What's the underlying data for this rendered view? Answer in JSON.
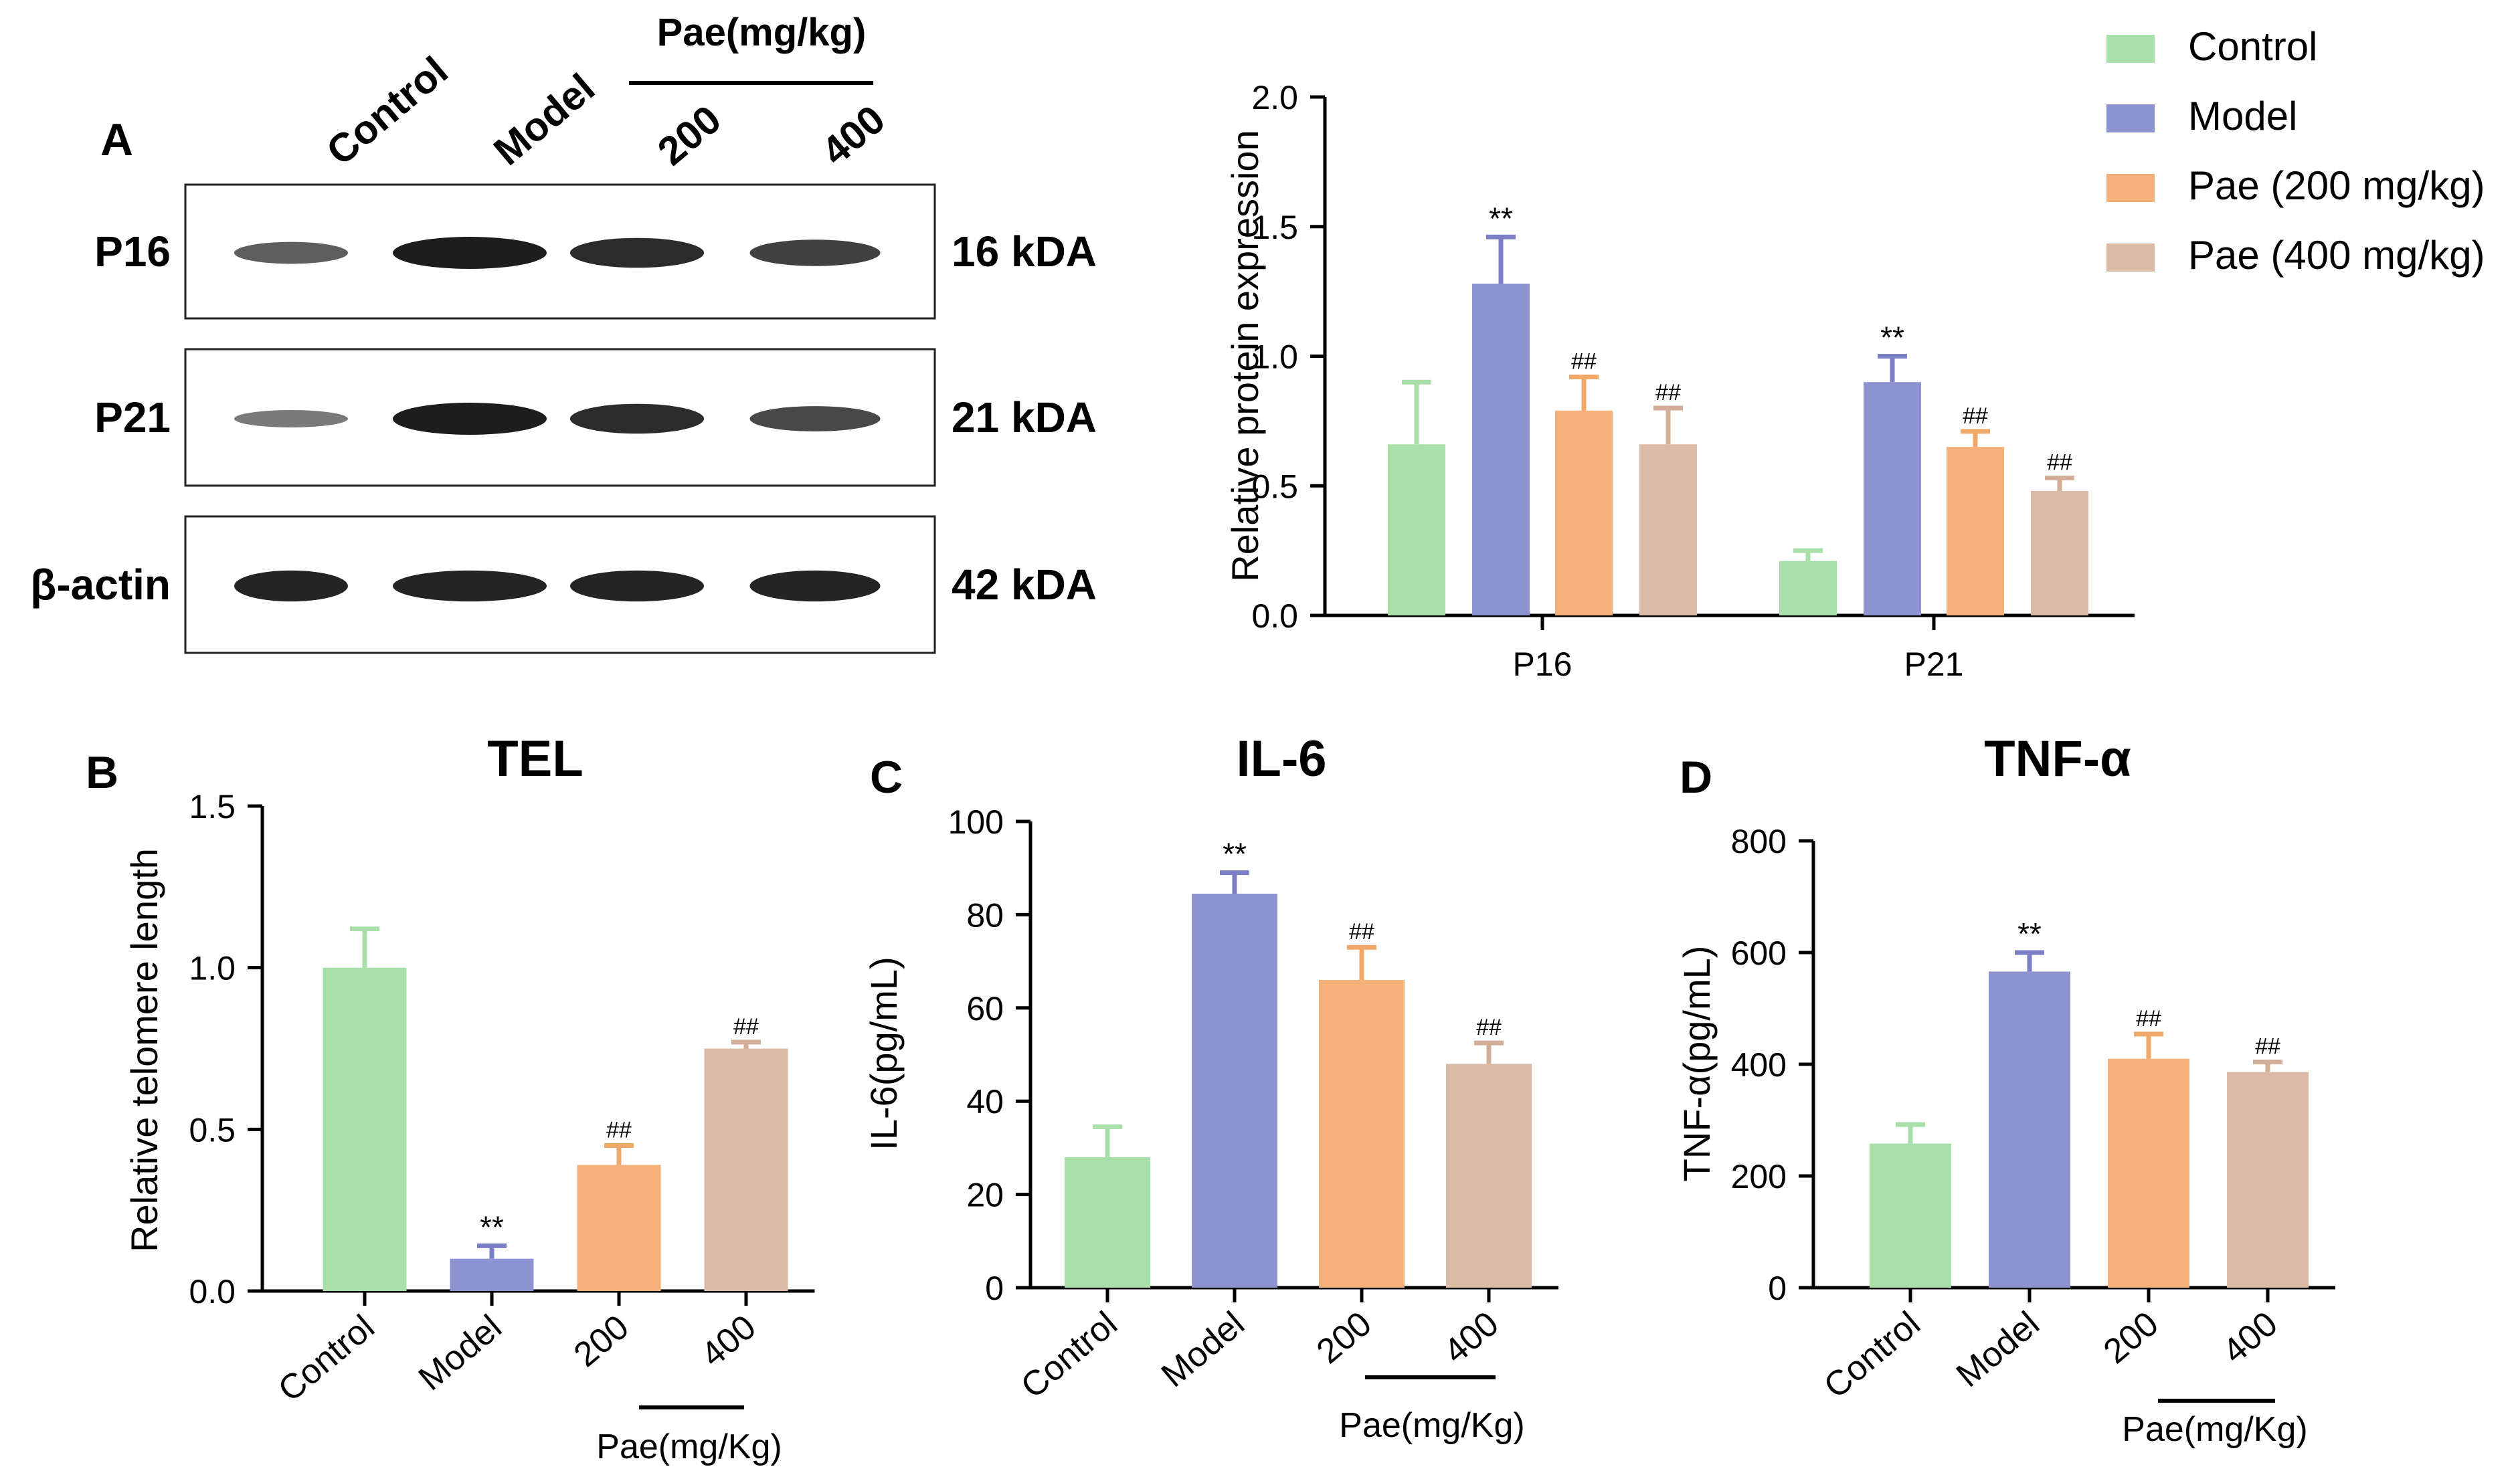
{
  "colors": {
    "control": "#a9dfa9",
    "model": "#8d92d0",
    "pae200": "#f4b27a",
    "pae400": "#dbbba6",
    "control_err": "#a9dfa9",
    "model_err": "#7b80c6",
    "pae200_err": "#f0a868",
    "pae400_err": "#d2ae98"
  },
  "legend": [
    {
      "key": "control",
      "label": "Control"
    },
    {
      "key": "model",
      "label": "Model"
    },
    {
      "key": "pae200",
      "label": "Pae (200 mg/kg)"
    },
    {
      "key": "pae400",
      "label": "Pae (400 mg/kg)"
    }
  ],
  "panel_a": {
    "letter": "A",
    "lane_labels": [
      "Control",
      "Model",
      "200",
      "400"
    ],
    "pae_header": "Pae(mg/kg)",
    "blots": [
      {
        "protein": "P16",
        "size": "16 kDA",
        "band_intensity": [
          0.55,
          1.0,
          0.9,
          0.75
        ]
      },
      {
        "protein": "P21",
        "size": "21 kDA",
        "band_intensity": [
          0.35,
          1.0,
          0.9,
          0.7
        ]
      },
      {
        "protein": "β-actin",
        "size": "42 kDA",
        "band_intensity": [
          0.95,
          0.95,
          0.95,
          0.95
        ]
      }
    ]
  },
  "chart_data": [
    {
      "id": "western-quant",
      "type": "bar",
      "title": "",
      "xlabel": "",
      "ylabel": "Relative protein expression",
      "ylim": [
        0,
        2.0
      ],
      "yticks": [
        "0.0",
        "0.5",
        "1.0",
        "1.5",
        "2.0"
      ],
      "categories": [
        "P16",
        "P21"
      ],
      "series": [
        {
          "name": "Control",
          "key": "control",
          "values": [
            0.66,
            0.21
          ],
          "errors": [
            0.24,
            0.04
          ],
          "marks": [
            "",
            ""
          ]
        },
        {
          "name": "Model",
          "key": "model",
          "values": [
            1.28,
            0.9
          ],
          "errors": [
            0.18,
            0.1
          ],
          "marks": [
            "**",
            "**"
          ]
        },
        {
          "name": "Pae (200 mg/kg)",
          "key": "pae200",
          "values": [
            0.79,
            0.65
          ],
          "errors": [
            0.13,
            0.06
          ],
          "marks": [
            "##",
            "##"
          ]
        },
        {
          "name": "Pae (400 mg/kg)",
          "key": "pae400",
          "values": [
            0.66,
            0.48
          ],
          "errors": [
            0.14,
            0.05
          ],
          "marks": [
            "##",
            "##"
          ]
        }
      ]
    },
    {
      "id": "tel",
      "letter": "B",
      "type": "bar",
      "title": "TEL",
      "ylabel": "Relative telomere length",
      "ylim": [
        0,
        1.5
      ],
      "yticks": [
        "0.0",
        "0.5",
        "1.0",
        "1.5"
      ],
      "categories": [
        "Control",
        "Model",
        "200",
        "400"
      ],
      "keys": [
        "control",
        "model",
        "pae200",
        "pae400"
      ],
      "values": [
        1.0,
        0.1,
        0.39,
        0.75
      ],
      "errors": [
        0.12,
        0.04,
        0.06,
        0.02
      ],
      "marks": [
        "",
        "**",
        "##",
        "##"
      ],
      "group_label": "Pae(mg/Kg)"
    },
    {
      "id": "il6",
      "letter": "C",
      "type": "bar",
      "title": "IL-6",
      "ylabel": "IL-6(pg/mL)",
      "ylim": [
        0,
        100
      ],
      "yticks": [
        "0",
        "20",
        "40",
        "60",
        "80",
        "100"
      ],
      "categories": [
        "Control",
        "Model",
        "200",
        "400"
      ],
      "keys": [
        "control",
        "model",
        "pae200",
        "pae400"
      ],
      "values": [
        28,
        84.5,
        66,
        48
      ],
      "errors": [
        6.5,
        4.5,
        7,
        4.5
      ],
      "marks": [
        "",
        "**",
        "##",
        "##"
      ],
      "group_label": "Pae(mg/Kg)"
    },
    {
      "id": "tnf",
      "letter": "D",
      "type": "bar",
      "title": "TNF-α",
      "ylabel": "TNF-α(pg/mL)",
      "ylim": [
        0,
        800
      ],
      "yticks": [
        "0",
        "200",
        "400",
        "600",
        "800"
      ],
      "categories": [
        "Control",
        "Model",
        "200",
        "400"
      ],
      "keys": [
        "control",
        "model",
        "pae200",
        "pae400"
      ],
      "values": [
        258,
        566,
        410,
        386
      ],
      "errors": [
        34,
        34,
        44,
        18
      ],
      "marks": [
        "",
        "**",
        "##",
        "##"
      ],
      "group_label": "Pae(mg/Kg)"
    }
  ]
}
